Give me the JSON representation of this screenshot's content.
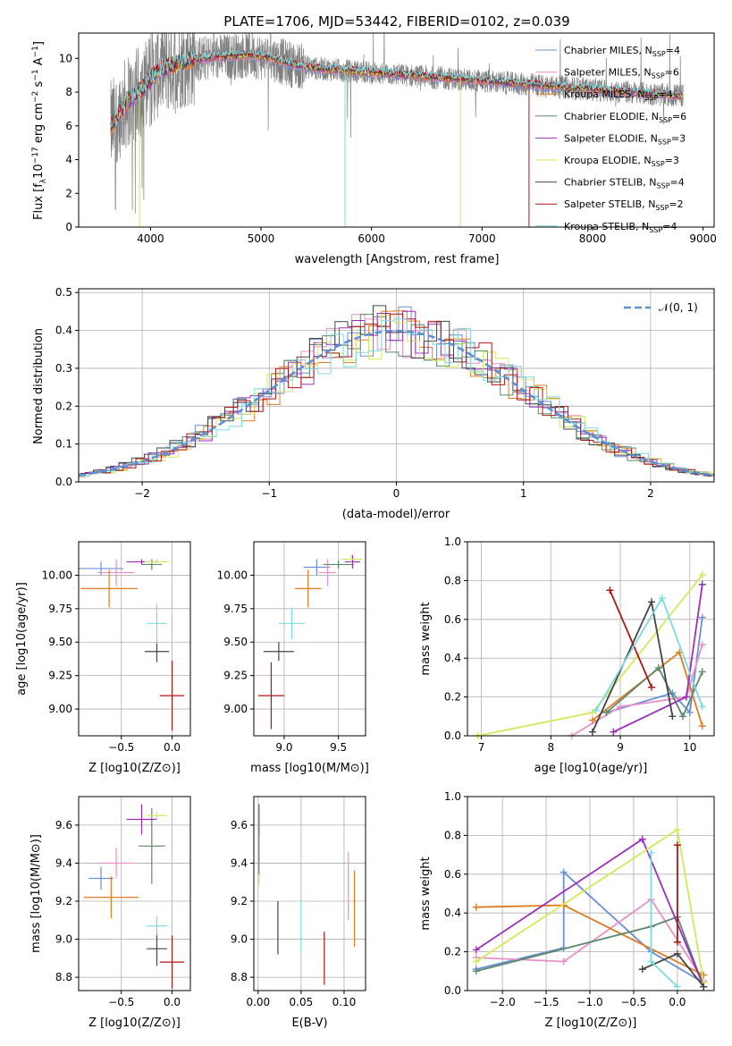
{
  "chart_data": [
    {
      "id": "spectrum",
      "type": "line",
      "title": "PLATE=1706, MJD=53442, FIBERID=0102, z=0.039",
      "xlabel": "wavelength [Angstrom, rest frame]",
      "ylabel": "Flux [f_λ 10^-17 erg cm^-2 s^-1 A^-1]",
      "xlim": [
        3350,
        9100
      ],
      "ylim": [
        0,
        11.5
      ],
      "xticks": [
        4000,
        5000,
        6000,
        7000,
        8000,
        9000
      ],
      "yticks": [
        0,
        2,
        4,
        6,
        8,
        10
      ],
      "data_color": "#808080",
      "data_envelope": {
        "x": [
          3640,
          3700,
          3800,
          3900,
          3970,
          4100,
          4300,
          4500,
          4700,
          4900,
          5100,
          5300,
          5500,
          5700,
          5900,
          6100,
          6300,
          6500,
          6700,
          6900,
          7100,
          7300,
          7500,
          7700,
          7900,
          8100,
          8300,
          8500,
          8700,
          8820
        ],
        "y": [
          5.9,
          6.6,
          7.5,
          8.0,
          8.5,
          9.4,
          9.8,
          10.0,
          10.1,
          10.2,
          10.0,
          9.6,
          9.4,
          9.3,
          9.2,
          9.1,
          9.0,
          8.9,
          8.8,
          8.7,
          8.6,
          8.5,
          8.4,
          8.3,
          8.2,
          8.1,
          8.0,
          7.9,
          7.8,
          7.8
        ]
      },
      "legend": [
        {
          "label": "Chabrier MILES, N",
          "sub": "SSP",
          "n": "=4",
          "color": "#6a8fd6"
        },
        {
          "label": "Salpeter MILES, N",
          "sub": "SSP",
          "n": "=6",
          "color": "#e98fc5"
        },
        {
          "label": "Kroupa MILES, N",
          "sub": "SSP",
          "n": "=4",
          "color": "#e07a1f"
        },
        {
          "label": "Chabrier ELODIE, N",
          "sub": "SSP",
          "n": "=6",
          "color": "#5a8a6a"
        },
        {
          "label": "Salpeter ELODIE, N",
          "sub": "SSP",
          "n": "=3",
          "color": "#9b30b8"
        },
        {
          "label": "Kroupa ELODIE, N",
          "sub": "SSP",
          "n": "=3",
          "color": "#d4e85a"
        },
        {
          "label": "Chabrier STELIB, N",
          "sub": "SSP",
          "n": "=4",
          "color": "#444444"
        },
        {
          "label": "Salpeter STELIB, N",
          "sub": "SSP",
          "n": "=2",
          "color": "#b01515"
        },
        {
          "label": "Kroupa STELIB, N",
          "sub": "SSP",
          "n": "=4",
          "color": "#7ddbe0"
        }
      ]
    },
    {
      "id": "residuals",
      "type": "histogram",
      "xlabel": "(data-model)/error",
      "ylabel": "Normed distribution",
      "xlim": [
        -2.5,
        2.5
      ],
      "ylim": [
        0,
        0.51
      ],
      "xticks": [
        -2,
        -1,
        0,
        1,
        2
      ],
      "yticks": [
        0.0,
        0.1,
        0.2,
        0.3,
        0.4,
        0.5
      ],
      "reference_label": "𝒩(0, 1)",
      "reference_color": "#5b8fd6",
      "grid": true
    },
    {
      "id": "age-vs-Z",
      "type": "errorbar",
      "xlabel": "Z [log10(Z/Z⊙)]",
      "ylabel": "age  [log10(age/yr)]",
      "xlim": [
        -0.92,
        0.18
      ],
      "ylim": [
        8.8,
        10.25
      ],
      "xticks": [
        -0.5,
        0.0
      ],
      "yticks": [
        9.0,
        9.25,
        9.5,
        9.75,
        10.0
      ],
      "points": [
        {
          "x": -0.7,
          "y": 10.05,
          "xerr": 0.22,
          "yerr": 0.05,
          "color": "#6a8fd6"
        },
        {
          "x": -0.55,
          "y": 10.02,
          "xerr": 0.18,
          "yerr": 0.1,
          "color": "#e98fc5"
        },
        {
          "x": -0.62,
          "y": 9.9,
          "xerr": 0.28,
          "yerr": 0.14,
          "color": "#e07a1f"
        },
        {
          "x": -0.2,
          "y": 10.08,
          "xerr": 0.1,
          "yerr": 0.04,
          "color": "#5a8a6a"
        },
        {
          "x": -0.3,
          "y": 10.1,
          "xerr": 0.15,
          "yerr": 0.02,
          "color": "#9b30b8"
        },
        {
          "x": -0.15,
          "y": 10.1,
          "xerr": 0.12,
          "yerr": 0.02,
          "color": "#d4e85a"
        },
        {
          "x": -0.15,
          "y": 9.43,
          "xerr": 0.12,
          "yerr": 0.08,
          "color": "#444444"
        },
        {
          "x": 0.0,
          "y": 9.1,
          "xerr": 0.12,
          "yerr": 0.26,
          "color": "#b01515"
        },
        {
          "x": -0.15,
          "y": 9.64,
          "xerr": 0.1,
          "yerr": 0.15,
          "color": "#7ddbe0"
        }
      ]
    },
    {
      "id": "age-vs-mass",
      "type": "errorbar",
      "xlabel": "mass [log10(M/M⊙)]",
      "ylabel": "",
      "xlim": [
        8.72,
        9.75
      ],
      "ylim": [
        8.8,
        10.25
      ],
      "xticks": [
        9.0,
        9.5
      ],
      "yticks": [
        9.0,
        9.25,
        9.5,
        9.75,
        10.0
      ],
      "points": [
        {
          "x": 9.3,
          "y": 10.06,
          "xerr": 0.12,
          "yerr": 0.06,
          "color": "#6a8fd6"
        },
        {
          "x": 9.4,
          "y": 10.02,
          "xerr": 0.08,
          "yerr": 0.1,
          "color": "#e98fc5"
        },
        {
          "x": 9.22,
          "y": 9.9,
          "xerr": 0.12,
          "yerr": 0.14,
          "color": "#e07a1f"
        },
        {
          "x": 9.5,
          "y": 10.08,
          "xerr": 0.14,
          "yerr": 0.03,
          "color": "#5a8a6a"
        },
        {
          "x": 9.63,
          "y": 10.1,
          "xerr": 0.07,
          "yerr": 0.05,
          "color": "#9b30b8"
        },
        {
          "x": 9.62,
          "y": 10.12,
          "xerr": 0.1,
          "yerr": 0.03,
          "color": "#d4e85a"
        },
        {
          "x": 8.95,
          "y": 9.43,
          "xerr": 0.14,
          "yerr": 0.07,
          "color": "#444444"
        },
        {
          "x": 8.88,
          "y": 9.1,
          "xerr": 0.12,
          "yerr": 0.25,
          "color": "#b01515"
        },
        {
          "x": 9.07,
          "y": 9.64,
          "xerr": 0.12,
          "yerr": 0.12,
          "color": "#7ddbe0"
        }
      ]
    },
    {
      "id": "weight-vs-age",
      "type": "line",
      "xlabel": "age  [log10(age/yr)]",
      "ylabel": "mass weight",
      "xlim": [
        6.8,
        10.35
      ],
      "ylim": [
        0,
        1.0
      ],
      "xticks": [
        7,
        8,
        9,
        10
      ],
      "yticks": [
        0.0,
        0.2,
        0.4,
        0.6,
        0.8,
        1.0
      ],
      "series": [
        {
          "color": "#6a8fd6",
          "x": [
            8.8,
            9.75,
            10.0,
            10.18
          ],
          "y": [
            0.12,
            0.22,
            0.12,
            0.61
          ]
        },
        {
          "color": "#e98fc5",
          "x": [
            8.3,
            9.0,
            9.95,
            10.18
          ],
          "y": [
            0.0,
            0.15,
            0.2,
            0.47
          ]
        },
        {
          "color": "#e07a1f",
          "x": [
            8.6,
            9.85,
            10.18
          ],
          "y": [
            0.08,
            0.43,
            0.05
          ]
        },
        {
          "color": "#5a8a6a",
          "x": [
            8.8,
            9.55,
            9.9,
            10.18
          ],
          "y": [
            0.12,
            0.35,
            0.1,
            0.33
          ]
        },
        {
          "color": "#9b30b8",
          "x": [
            8.9,
            9.95,
            10.18
          ],
          "y": [
            0.02,
            0.2,
            0.78
          ]
        },
        {
          "color": "#d4e85a",
          "x": [
            6.95,
            8.6,
            10.18
          ],
          "y": [
            0.0,
            0.12,
            0.83
          ]
        },
        {
          "color": "#444444",
          "x": [
            8.6,
            9.45,
            9.75
          ],
          "y": [
            0.02,
            0.69,
            0.1
          ]
        },
        {
          "color": "#b01515",
          "x": [
            8.85,
            9.45
          ],
          "y": [
            0.75,
            0.25
          ]
        },
        {
          "color": "#7ddbe0",
          "x": [
            8.65,
            9.6,
            10.18
          ],
          "y": [
            0.13,
            0.71,
            0.15
          ]
        }
      ]
    },
    {
      "id": "mass-vs-Z",
      "type": "errorbar",
      "xlabel": "Z [log10(Z/Z⊙)]",
      "ylabel": "mass [log10(M/M⊙)]",
      "xlim": [
        -0.92,
        0.18
      ],
      "ylim": [
        8.73,
        9.75
      ],
      "xticks": [
        -0.5,
        0.0
      ],
      "yticks": [
        8.8,
        9.0,
        9.2,
        9.4,
        9.6
      ],
      "points": [
        {
          "x": -0.7,
          "y": 9.32,
          "xerr": 0.12,
          "yerr": 0.06,
          "color": "#6a8fd6"
        },
        {
          "x": -0.55,
          "y": 9.4,
          "xerr": 0.18,
          "yerr": 0.08,
          "color": "#e98fc5"
        },
        {
          "x": -0.6,
          "y": 9.22,
          "xerr": 0.27,
          "yerr": 0.11,
          "color": "#e07a1f"
        },
        {
          "x": -0.2,
          "y": 9.49,
          "xerr": 0.13,
          "yerr": 0.2,
          "color": "#5a8a6a"
        },
        {
          "x": -0.3,
          "y": 9.63,
          "xerr": 0.15,
          "yerr": 0.08,
          "color": "#9b30b8"
        },
        {
          "x": -0.15,
          "y": 9.65,
          "xerr": 0.1,
          "yerr": 0.02,
          "color": "#d4e85a"
        },
        {
          "x": -0.15,
          "y": 8.95,
          "xerr": 0.1,
          "yerr": 0.09,
          "color": "#444444"
        },
        {
          "x": 0.0,
          "y": 8.88,
          "xerr": 0.12,
          "yerr": 0.14,
          "color": "#b01515"
        },
        {
          "x": -0.15,
          "y": 9.07,
          "xerr": 0.1,
          "yerr": 0.05,
          "color": "#7ddbe0"
        }
      ]
    },
    {
      "id": "mass-vs-ebv",
      "type": "errorbar",
      "xlabel": "E(B-V)",
      "ylabel": "",
      "xlim": [
        -0.005,
        0.125
      ],
      "ylim": [
        8.73,
        9.75
      ],
      "xticks": [
        0.0,
        0.05,
        0.1
      ],
      "yticks": [
        8.8,
        9.0,
        9.2,
        9.4,
        9.6
      ],
      "points": [
        {
          "x": 0.001,
          "y": 9.48,
          "xerr": 0,
          "yerr": 0.2,
          "color": "#d4e85a"
        },
        {
          "x": 0.001,
          "y": 9.63,
          "xerr": 0,
          "yerr": 0.08,
          "color": "#9b30b8"
        },
        {
          "x": 0.001,
          "y": 9.52,
          "xerr": 0,
          "yerr": 0.18,
          "color": "#5a8a6a"
        },
        {
          "x": 0.023,
          "y": 9.06,
          "xerr": 0,
          "yerr": 0.14,
          "color": "#444444"
        },
        {
          "x": 0.05,
          "y": 9.07,
          "xerr": 0,
          "yerr": 0.14,
          "color": "#7ddbe0"
        },
        {
          "x": 0.077,
          "y": 8.9,
          "xerr": 0,
          "yerr": 0.14,
          "color": "#b01515"
        },
        {
          "x": 0.105,
          "y": 9.28,
          "xerr": 0,
          "yerr": 0.18,
          "color": "#e98fc5"
        },
        {
          "x": 0.112,
          "y": 9.16,
          "xerr": 0,
          "yerr": 0.2,
          "color": "#e07a1f"
        }
      ]
    },
    {
      "id": "weight-vs-Z",
      "type": "line",
      "xlabel": "Z [log10(Z/Z⊙)]",
      "ylabel": "mass weight",
      "xlim": [
        -2.4,
        0.42
      ],
      "ylim": [
        0,
        1.0
      ],
      "xticks": [
        -2.0,
        -1.5,
        -1.0,
        -0.5,
        0.0
      ],
      "yticks": [
        0.0,
        0.2,
        0.4,
        0.6,
        0.8,
        1.0
      ],
      "series": [
        {
          "color": "#6a8fd6",
          "x": [
            -2.3,
            -1.3,
            -1.3,
            -0.3,
            0.3
          ],
          "y": [
            0.11,
            0.22,
            0.61,
            0.2,
            0.04
          ]
        },
        {
          "color": "#e98fc5",
          "x": [
            -2.3,
            -1.3,
            -0.3,
            0.3
          ],
          "y": [
            0.17,
            0.15,
            0.47,
            0.05
          ]
        },
        {
          "color": "#e07a1f",
          "x": [
            -2.3,
            -1.3,
            0.3
          ],
          "y": [
            0.43,
            0.44,
            0.08
          ]
        },
        {
          "color": "#5a8a6a",
          "x": [
            -2.3,
            -0.3,
            0.0,
            0.3
          ],
          "y": [
            0.1,
            0.33,
            0.38,
            0.02
          ]
        },
        {
          "color": "#9b30b8",
          "x": [
            -2.3,
            -0.4,
            0.3
          ],
          "y": [
            0.21,
            0.78,
            0.02
          ]
        },
        {
          "color": "#d4e85a",
          "x": [
            -2.3,
            0.0,
            0.3
          ],
          "y": [
            0.15,
            0.83,
            0.04
          ]
        },
        {
          "color": "#444444",
          "x": [
            -0.4,
            0.0,
            0.3
          ],
          "y": [
            0.11,
            0.19,
            0.02
          ]
        },
        {
          "color": "#b01515",
          "x": [
            0.0,
            0.0
          ],
          "y": [
            0.75,
            0.25
          ]
        },
        {
          "color": "#7ddbe0",
          "x": [
            -0.3,
            -0.3,
            0.0
          ],
          "y": [
            0.71,
            0.15,
            0.02
          ]
        }
      ]
    }
  ]
}
